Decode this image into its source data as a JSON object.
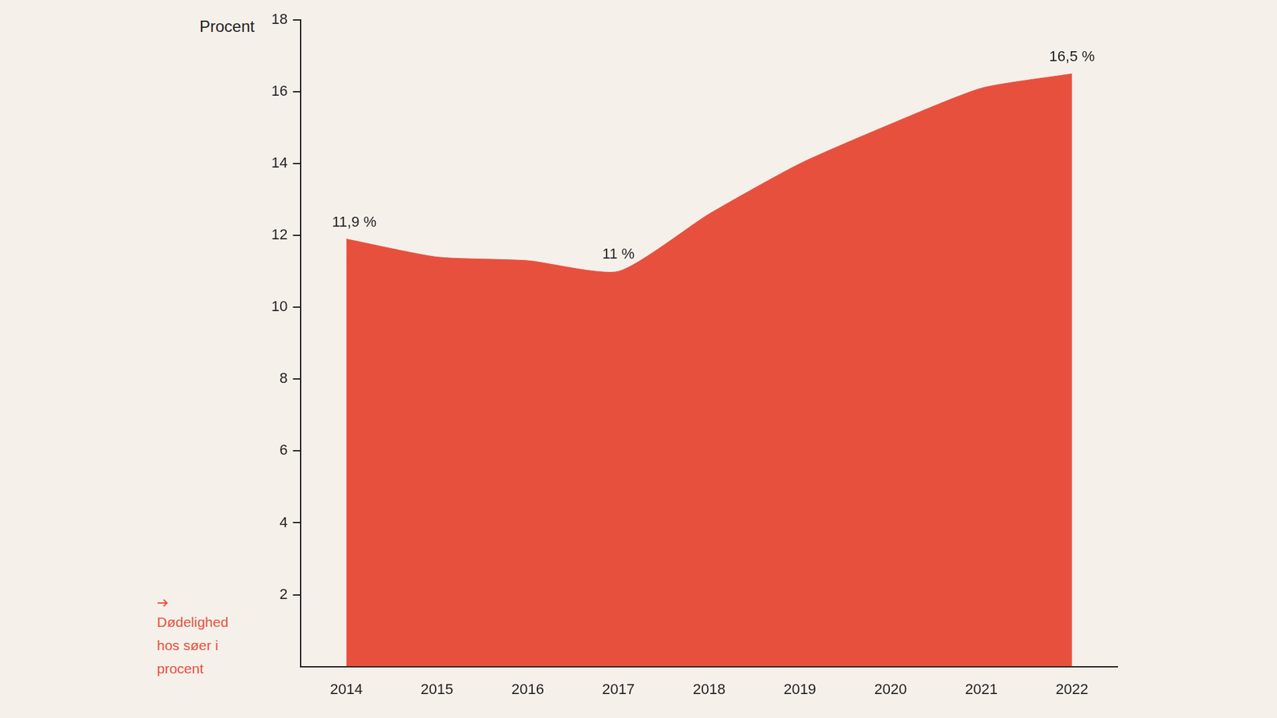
{
  "chart_data": {
    "type": "area",
    "y_label": "Procent",
    "categories": [
      "2014",
      "2015",
      "2016",
      "2017",
      "2018",
      "2019",
      "2020",
      "2021",
      "2022"
    ],
    "series": [
      {
        "name": "Dødelighed hos søer i procent",
        "color": "#e8503e",
        "values": [
          11.9,
          11.4,
          11.3,
          11.0,
          12.6,
          14.0,
          15.1,
          16.1,
          16.5
        ],
        "value_labels": [
          "11,9 %",
          null,
          null,
          "11 %",
          null,
          null,
          null,
          null,
          "16,5 %"
        ]
      }
    ],
    "ylim": [
      0,
      18
    ],
    "yticks": [
      2,
      4,
      6,
      8,
      10,
      12,
      14,
      16,
      18
    ],
    "grid": false,
    "legend": "bottom-left",
    "data_labels": true
  }
}
